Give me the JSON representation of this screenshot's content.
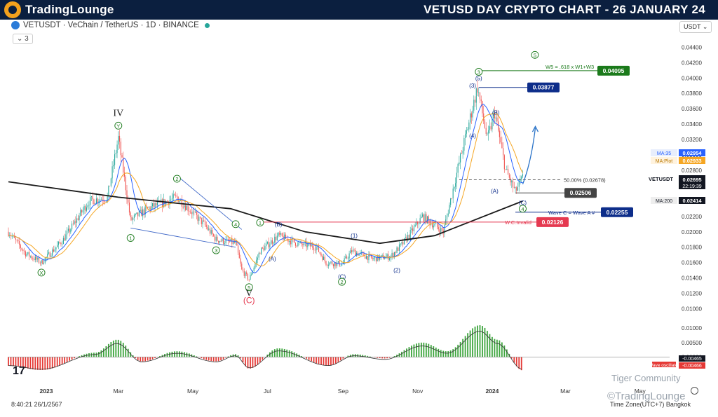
{
  "header": {
    "brand": "TradingLounge",
    "title": "VETUSD DAY CRYPTO CHART - 26 JANUARY 24"
  },
  "toolbar": {
    "symbol_text": "VETUSDT · VeChain / TetherUS · 1D · BINANCE",
    "indicator_count": "3",
    "currency": "USDT"
  },
  "footer": {
    "clock": "8:40:21 26/1/2567",
    "timezone": "Time Zone(UTC+7) Bangkok",
    "watermark_top": "Tiger Community",
    "watermark_bottom": "©TradingLounge"
  },
  "colors": {
    "up": "#26a69a",
    "down": "#ef5350",
    "ma_short": "#2962ff",
    "ma_mid": "#f5a623",
    "ma_long": "#1a1a1a",
    "target_green": "#1b7a1b",
    "navy": "#0d2d8a",
    "invalid": "#e53950"
  },
  "chart_data": {
    "type": "candlestick",
    "y_range": [
      0.0,
      0.045
    ],
    "y_ticks": [
      "0.04400",
      "0.04200",
      "0.04000",
      "0.03800",
      "0.03600",
      "0.03400",
      "0.03200",
      "0.03000",
      "0.02800",
      "0.02600",
      "0.02400",
      "0.02200",
      "0.02000",
      "0.01800",
      "0.01600",
      "0.01400",
      "0.01200",
      "0.01000"
    ],
    "x_ticks": [
      {
        "label": "2023",
        "date": "2023-01-01"
      },
      {
        "label": "Mar",
        "date": "2023-03-01"
      },
      {
        "label": "May",
        "date": "2023-05-01"
      },
      {
        "label": "Jul",
        "date": "2023-07-01"
      },
      {
        "label": "Sep",
        "date": "2023-09-01"
      },
      {
        "label": "Nov",
        "date": "2023-11-01"
      },
      {
        "label": "2024",
        "date": "2024-01-01"
      },
      {
        "label": "Mar",
        "date": "2024-03-01"
      },
      {
        "label": "May",
        "date": "2024-05-01"
      }
    ],
    "price_path": [
      [
        "2022-12-01",
        0.02
      ],
      [
        "2022-12-15",
        0.0172
      ],
      [
        "2022-12-28",
        0.016
      ],
      [
        "2023-01-15",
        0.019
      ],
      [
        "2023-02-05",
        0.024
      ],
      [
        "2023-02-20",
        0.0245
      ],
      [
        "2023-03-01",
        0.0322
      ],
      [
        "2023-03-11",
        0.0215
      ],
      [
        "2023-03-25",
        0.023
      ],
      [
        "2023-04-18",
        0.0245
      ],
      [
        "2023-05-10",
        0.021
      ],
      [
        "2023-05-20",
        0.019
      ],
      [
        "2023-06-05",
        0.0185
      ],
      [
        "2023-06-10",
        0.015
      ],
      [
        "2023-06-16",
        0.0138
      ],
      [
        "2023-06-25",
        0.0175
      ],
      [
        "2023-07-10",
        0.0195
      ],
      [
        "2023-07-25",
        0.0185
      ],
      [
        "2023-08-10",
        0.018
      ],
      [
        "2023-08-18",
        0.016
      ],
      [
        "2023-08-31",
        0.0158
      ],
      [
        "2023-09-08",
        0.0175
      ],
      [
        "2023-09-25",
        0.0165
      ],
      [
        "2023-10-10",
        0.0168
      ],
      [
        "2023-10-20",
        0.0185
      ],
      [
        "2023-11-05",
        0.022
      ],
      [
        "2023-11-22",
        0.02
      ],
      [
        "2023-12-05",
        0.029
      ],
      [
        "2023-12-20",
        0.0388
      ],
      [
        "2023-12-28",
        0.032
      ],
      [
        "2024-01-03",
        0.0355
      ],
      [
        "2024-01-12",
        0.028
      ],
      [
        "2024-01-20",
        0.0252
      ],
      [
        "2024-01-26",
        0.027
      ]
    ],
    "moving_averages": [
      {
        "name": "MA:35",
        "value": 0.02954
      },
      {
        "name": "MA:Plot",
        "value": 0.02933
      },
      {
        "name": "MA:200",
        "value": 0.02414
      }
    ],
    "last_price": {
      "symbol": "VETUSDT",
      "value": 0.02695,
      "countdown": "22:19:39"
    },
    "price_levels": [
      {
        "label": "0.04095",
        "value": 0.04095,
        "note": "W5 = .618 x W1+W3",
        "kind": "target"
      },
      {
        "label": "0.03877",
        "value": 0.03877,
        "kind": "high"
      },
      {
        "label": "0.02506",
        "value": 0.02506,
        "kind": "low"
      },
      {
        "label": "0.02255",
        "value": 0.02255,
        "note": "Wave C = Wave A #",
        "kind": "target-c"
      },
      {
        "label": "0.02126",
        "value": 0.02126,
        "note": "W.C.Invalid",
        "kind": "invalid"
      }
    ],
    "retracement": {
      "label": "50.00% (0.02678)",
      "value": 0.02678
    },
    "wave_labels": [
      {
        "text": "IV",
        "date": "2023-03-01",
        "price": 0.0355,
        "kind": "roman"
      },
      {
        "text": "Y",
        "date": "2023-03-01",
        "price": 0.0338,
        "kind": "circle"
      },
      {
        "text": "X",
        "date": "2022-12-28",
        "price": 0.0147,
        "kind": "circle"
      },
      {
        "text": "1",
        "date": "2023-03-11",
        "price": 0.0192,
        "kind": "circle"
      },
      {
        "text": "2",
        "date": "2023-04-18",
        "price": 0.0269,
        "kind": "circle"
      },
      {
        "text": "3",
        "date": "2023-05-20",
        "price": 0.0176,
        "kind": "circle"
      },
      {
        "text": "4",
        "date": "2023-06-05",
        "price": 0.021,
        "kind": "circle"
      },
      {
        "text": "5",
        "date": "2023-06-16",
        "price": 0.0128,
        "kind": "circle"
      },
      {
        "text": "V",
        "date": "2023-06-16",
        "price": 0.0121,
        "kind": "roman"
      },
      {
        "text": "(C)",
        "date": "2023-06-16",
        "price": 0.0111,
        "kind": "red"
      },
      {
        "text": "1",
        "date": "2023-06-25",
        "price": 0.0212,
        "kind": "circle"
      },
      {
        "text": "(B)",
        "date": "2023-07-10",
        "price": 0.021,
        "kind": "paren"
      },
      {
        "text": "(A)",
        "date": "2023-07-05",
        "price": 0.0165,
        "kind": "paren"
      },
      {
        "text": "(1)",
        "date": "2023-09-10",
        "price": 0.0195,
        "kind": "paren"
      },
      {
        "text": "(C)",
        "date": "2023-08-31",
        "price": 0.0142,
        "kind": "paren"
      },
      {
        "text": "2",
        "date": "2023-08-31",
        "price": 0.0135,
        "kind": "circle"
      },
      {
        "text": "(2)",
        "date": "2023-10-15",
        "price": 0.015,
        "kind": "paren"
      },
      {
        "text": "(3)",
        "date": "2023-12-16",
        "price": 0.039,
        "kind": "paren"
      },
      {
        "text": "(4)",
        "date": "2023-12-16",
        "price": 0.0325,
        "kind": "paren"
      },
      {
        "text": "(5)",
        "date": "2023-12-21",
        "price": 0.04,
        "kind": "paren"
      },
      {
        "text": "3",
        "date": "2023-12-21",
        "price": 0.0408,
        "kind": "circle"
      },
      {
        "text": "(B)",
        "date": "2024-01-04",
        "price": 0.0355,
        "kind": "paren"
      },
      {
        "text": "(A)",
        "date": "2024-01-03",
        "price": 0.0253,
        "kind": "paren"
      },
      {
        "text": "(C)",
        "date": "2024-01-26",
        "price": 0.0238,
        "kind": "paren"
      },
      {
        "text": "4",
        "date": "2024-01-26",
        "price": 0.023,
        "kind": "circle"
      },
      {
        "text": "5",
        "date": "2024-02-05",
        "price": 0.043,
        "kind": "circle"
      }
    ],
    "oscillator": {
      "name": "Wave oscillator",
      "values": [
        -0.00465,
        -0.00466
      ],
      "ticks": [
        "0.01000",
        "0.00500",
        "0.00000"
      ],
      "range": [
        -0.0045,
        0.0115
      ],
      "path": [
        [
          "2022-12-01",
          -0.003
        ],
        [
          "2022-12-28",
          -0.0045
        ],
        [
          "2023-02-10",
          0.0015
        ],
        [
          "2023-02-28",
          0.006
        ],
        [
          "2023-03-20",
          -0.0015
        ],
        [
          "2023-04-18",
          0.002
        ],
        [
          "2023-05-20",
          -0.0015
        ],
        [
          "2023-06-05",
          0.001
        ],
        [
          "2023-06-16",
          -0.004
        ],
        [
          "2023-07-10",
          0.003
        ],
        [
          "2023-08-20",
          -0.003
        ],
        [
          "2023-09-10",
          0.001
        ],
        [
          "2023-10-05",
          -0.0005
        ],
        [
          "2023-11-05",
          0.005
        ],
        [
          "2023-11-25",
          0.002
        ],
        [
          "2023-12-22",
          0.011
        ],
        [
          "2024-01-05",
          0.006
        ],
        [
          "2024-01-26",
          -0.0046
        ]
      ]
    }
  }
}
